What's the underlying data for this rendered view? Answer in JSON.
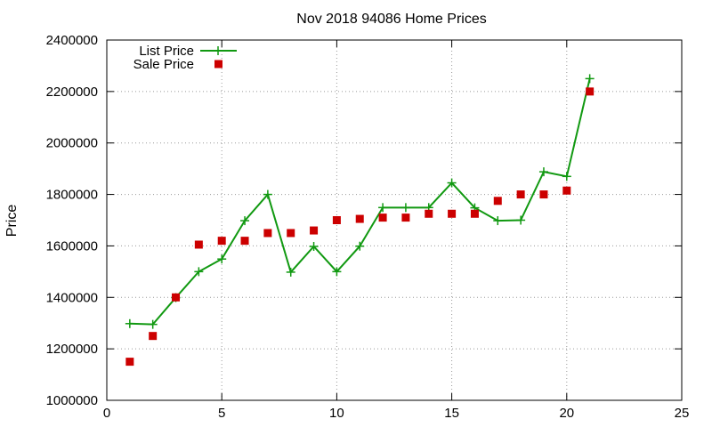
{
  "chart_data": {
    "type": "line",
    "title": "Nov 2018 94086 Home Prices",
    "xlabel": "",
    "ylabel": "Price",
    "xlim": [
      0,
      25
    ],
    "ylim": [
      1000000,
      2400000
    ],
    "x_ticks": [
      0,
      5,
      10,
      15,
      20,
      25
    ],
    "y_ticks": [
      1000000,
      1200000,
      1400000,
      1600000,
      1800000,
      2000000,
      2200000,
      2400000
    ],
    "x_tick_labels": [
      "0",
      "5",
      "10",
      "15",
      "20",
      "25"
    ],
    "y_tick_labels": [
      "1000000",
      "1200000",
      "1400000",
      "1600000",
      "1800000",
      "2000000",
      "2200000",
      "2400000"
    ],
    "grid": true,
    "legend_position": "top-left",
    "series": [
      {
        "name": "List Price",
        "kind": "line",
        "marker": "plus",
        "color": "#119911",
        "x": [
          1,
          2,
          3,
          4,
          5,
          6,
          7,
          8,
          9,
          10,
          11,
          12,
          13,
          14,
          15,
          16,
          17,
          18,
          19,
          20,
          21
        ],
        "y": [
          1298000,
          1295000,
          1399000,
          1500000,
          1549000,
          1698000,
          1800000,
          1498000,
          1598000,
          1500000,
          1599000,
          1749000,
          1749000,
          1749000,
          1845000,
          1748000,
          1698000,
          1700000,
          1888000,
          1870000,
          2250000
        ]
      },
      {
        "name": "Sale Price",
        "kind": "scatter",
        "marker": "square",
        "color": "#cc0000",
        "x": [
          1,
          2,
          3,
          4,
          5,
          6,
          7,
          8,
          9,
          10,
          11,
          12,
          13,
          14,
          15,
          16,
          17,
          18,
          19,
          20,
          21
        ],
        "y": [
          1150000,
          1250000,
          1400000,
          1605000,
          1620000,
          1620000,
          1650000,
          1650000,
          1660000,
          1700000,
          1705000,
          1710000,
          1710000,
          1725000,
          1725000,
          1725000,
          1775000,
          1800000,
          1800000,
          1815000,
          2200000
        ]
      }
    ]
  }
}
